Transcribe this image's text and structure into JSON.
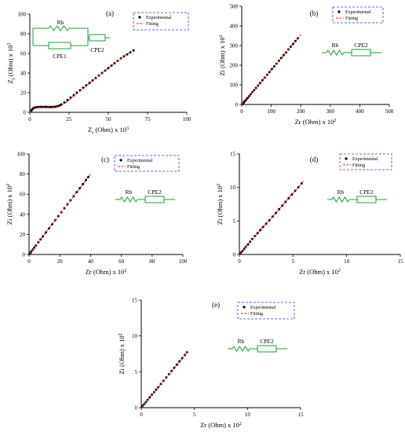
{
  "chart_data": [
    {
      "panel": "(a)",
      "type": "scatter",
      "xlabel": "Z_r (Ohm) x 10^3",
      "ylabel": "Z_i (Ohm) x 10^3",
      "xlim": [
        0,
        100
      ],
      "ylim": [
        0,
        100
      ],
      "xticks": [
        "0",
        "25",
        "50",
        "75",
        "100"
      ],
      "yticks": [
        "0",
        "20",
        "40",
        "60",
        "80",
        "100"
      ],
      "series": [
        {
          "name": "Experimental",
          "style": "points",
          "x": [
            0.5,
            1,
            1.5,
            2,
            2.5,
            3,
            4,
            5,
            6,
            7,
            8,
            9,
            10,
            11,
            12,
            13,
            14,
            15,
            16,
            17,
            18,
            19,
            20,
            22,
            24,
            26,
            28,
            30,
            32,
            34,
            36,
            38,
            40,
            42,
            44,
            46,
            48,
            50,
            52,
            54,
            56,
            58,
            60,
            62,
            64,
            66
          ],
          "y": [
            1,
            2,
            3,
            3.8,
            4.3,
            4.7,
            5.1,
            5.3,
            5.4,
            5.5,
            5.5,
            5.5,
            5.5,
            5.5,
            5.4,
            5.4,
            5.4,
            5.5,
            5.6,
            5.9,
            6.3,
            7,
            8,
            10,
            12.5,
            15,
            17.5,
            20,
            22.5,
            25,
            27.5,
            30,
            32.5,
            35,
            37.5,
            40,
            42.5,
            45,
            47.5,
            50,
            52.5,
            55,
            57,
            59,
            61,
            63
          ]
        },
        {
          "name": "Fitting",
          "style": "line",
          "x": [
            0,
            1,
            2,
            3,
            4,
            6,
            8,
            10,
            12,
            14,
            16,
            18,
            20,
            22,
            25,
            30,
            35,
            40,
            45,
            50,
            55,
            60,
            65
          ],
          "y": [
            0,
            2,
            3.5,
            4.4,
            4.9,
            5.3,
            5.4,
            5.4,
            5.3,
            5.3,
            5.4,
            5.8,
            7,
            9,
            12.5,
            19,
            25.5,
            32,
            38.5,
            45,
            51.5,
            57.5,
            62
          ]
        }
      ],
      "legend": [
        "Experimental",
        "Fitting"
      ],
      "legend_position": "top-right",
      "circuit": {
        "r": "Rb",
        "cpe1": "CPE1",
        "cpe2": "CPE2"
      }
    },
    {
      "panel": "(b)",
      "type": "scatter",
      "xlabel": "Zr (Ohm) x 10^2",
      "ylabel": "Zi (Ohm) x 10^2",
      "xlim": [
        0,
        500
      ],
      "ylim": [
        0,
        500
      ],
      "xticks": [
        "0",
        "100",
        "200",
        "300",
        "400",
        "500"
      ],
      "yticks": [
        "0",
        "100",
        "200",
        "300",
        "400",
        "500"
      ],
      "series": [
        {
          "name": "Experimental",
          "style": "points",
          "x": [
            2,
            4,
            6,
            8,
            10,
            13,
            16,
            20,
            25,
            30,
            36,
            42,
            48,
            55,
            62,
            70,
            78,
            86,
            94,
            102,
            110,
            118,
            126,
            134,
            142,
            150,
            158,
            166,
            174,
            182,
            190
          ],
          "y": [
            2,
            5,
            8,
            12,
            16,
            21,
            27,
            33,
            42,
            52,
            63,
            73,
            84,
            96,
            109,
            123,
            137,
            151,
            165,
            180,
            194,
            208,
            222,
            237,
            251,
            265,
            280,
            294,
            308,
            323,
            337
          ]
        },
        {
          "name": "Fitting",
          "style": "line",
          "x": [
            0,
            50,
            100,
            150,
            200
          ],
          "y": [
            0,
            88,
            177,
            266,
            356
          ]
        }
      ],
      "legend": [
        "Experimental",
        "Fitting"
      ],
      "legend_position": "top-right",
      "circuit": {
        "r": "Rb",
        "cpe": "CPE2"
      }
    },
    {
      "panel": "(c)",
      "type": "scatter",
      "xlabel": "Zr (Ohm) x 10^2",
      "ylabel": "Zi (Ohm) x 10^2",
      "xlim": [
        0,
        100
      ],
      "ylim": [
        0,
        100
      ],
      "xticks": [
        "0",
        "20",
        "40",
        "60",
        "80",
        "100"
      ],
      "yticks": [
        "0",
        "20",
        "40",
        "60",
        "80",
        "100"
      ],
      "series": [
        {
          "name": "Experimental",
          "style": "points",
          "x": [
            0.3,
            0.8,
            1.5,
            2.5,
            3.5,
            4.5,
            6,
            7.5,
            9,
            11,
            13,
            15,
            17,
            19,
            21,
            23,
            25,
            27,
            29,
            31,
            33,
            35,
            37,
            38.5
          ],
          "y": [
            0.5,
            1.5,
            3,
            5,
            7,
            9,
            12,
            15,
            18,
            22,
            26,
            30,
            34,
            38,
            42,
            46,
            50,
            54,
            58,
            62,
            66,
            70,
            74,
            77
          ]
        },
        {
          "name": "Fitting",
          "style": "line",
          "x": [
            0,
            10,
            20,
            30,
            40
          ],
          "y": [
            0,
            20,
            40,
            60,
            80
          ]
        }
      ],
      "legend": [
        "Experimental",
        "Fitting"
      ],
      "legend_position": "top-right",
      "circuit": {
        "r": "Rb",
        "cpe": "CPE2"
      }
    },
    {
      "panel": "(d)",
      "type": "scatter",
      "xlabel": "Zr (Ohm) x 10^2",
      "ylabel": "Zi (Ohm) x 10^2",
      "xlim": [
        0,
        15
      ],
      "ylim": [
        0,
        15
      ],
      "xticks": [
        "0",
        "5",
        "10",
        "15"
      ],
      "yticks": [
        "0",
        "5",
        "10",
        "15"
      ],
      "series": [
        {
          "name": "Experimental",
          "style": "points",
          "x": [
            0.05,
            0.15,
            0.3,
            0.45,
            0.6,
            0.8,
            1,
            1.2,
            1.45,
            1.7,
            1.95,
            2.2,
            2.5,
            2.8,
            3.1,
            3.4,
            3.7,
            4,
            4.3,
            4.6,
            4.9,
            5.2,
            5.5,
            5.8
          ],
          "y": [
            0.1,
            0.3,
            0.55,
            0.85,
            1.15,
            1.5,
            1.9,
            2.3,
            2.75,
            3.2,
            3.65,
            4.1,
            4.6,
            5.1,
            5.65,
            6.2,
            6.75,
            7.3,
            7.85,
            8.4,
            8.95,
            9.5,
            10.05,
            10.6
          ]
        },
        {
          "name": "Fitting",
          "style": "line",
          "x": [
            0,
            2,
            4,
            6
          ],
          "y": [
            0,
            3.7,
            7.3,
            11
          ]
        }
      ],
      "legend": [
        "Experimental",
        "Fitting"
      ],
      "legend_position": "top-right",
      "circuit": {
        "r": "Rb",
        "cpe": "CPE2"
      }
    },
    {
      "panel": "(e)",
      "type": "scatter",
      "xlabel": "Zr (Ohm) x 10^2",
      "ylabel": "Zi (Ohm) x 10^2",
      "xlim": [
        0,
        15
      ],
      "ylim": [
        0,
        15
      ],
      "xticks": [
        "0",
        "5",
        "10",
        "15"
      ],
      "yticks": [
        "0",
        "5",
        "10",
        "15"
      ],
      "series": [
        {
          "name": "Experimental",
          "style": "points",
          "x": [
            0.05,
            0.15,
            0.3,
            0.45,
            0.6,
            0.8,
            1,
            1.2,
            1.4,
            1.6,
            1.85,
            2.1,
            2.35,
            2.6,
            2.85,
            3.1,
            3.35,
            3.6,
            3.85,
            4.1,
            4.3
          ],
          "y": [
            0.1,
            0.3,
            0.55,
            0.8,
            1.1,
            1.45,
            1.8,
            2.15,
            2.5,
            2.85,
            3.3,
            3.75,
            4.2,
            4.65,
            5.1,
            5.55,
            6,
            6.45,
            6.9,
            7.35,
            7.7
          ]
        },
        {
          "name": "Fitting",
          "style": "line",
          "x": [
            0,
            2,
            4.4
          ],
          "y": [
            0,
            3.55,
            7.85
          ]
        }
      ],
      "legend": [
        "Experimental",
        "Fitting"
      ],
      "legend_position": "top-right",
      "circuit": {
        "r": "Rb",
        "cpe": "CPE2"
      }
    }
  ],
  "colors": {
    "points": "#000000",
    "fit_line": "#e0231c",
    "circuit": "#1a9e3a",
    "legend_border": "#3a3acf",
    "axes": "#000000"
  }
}
